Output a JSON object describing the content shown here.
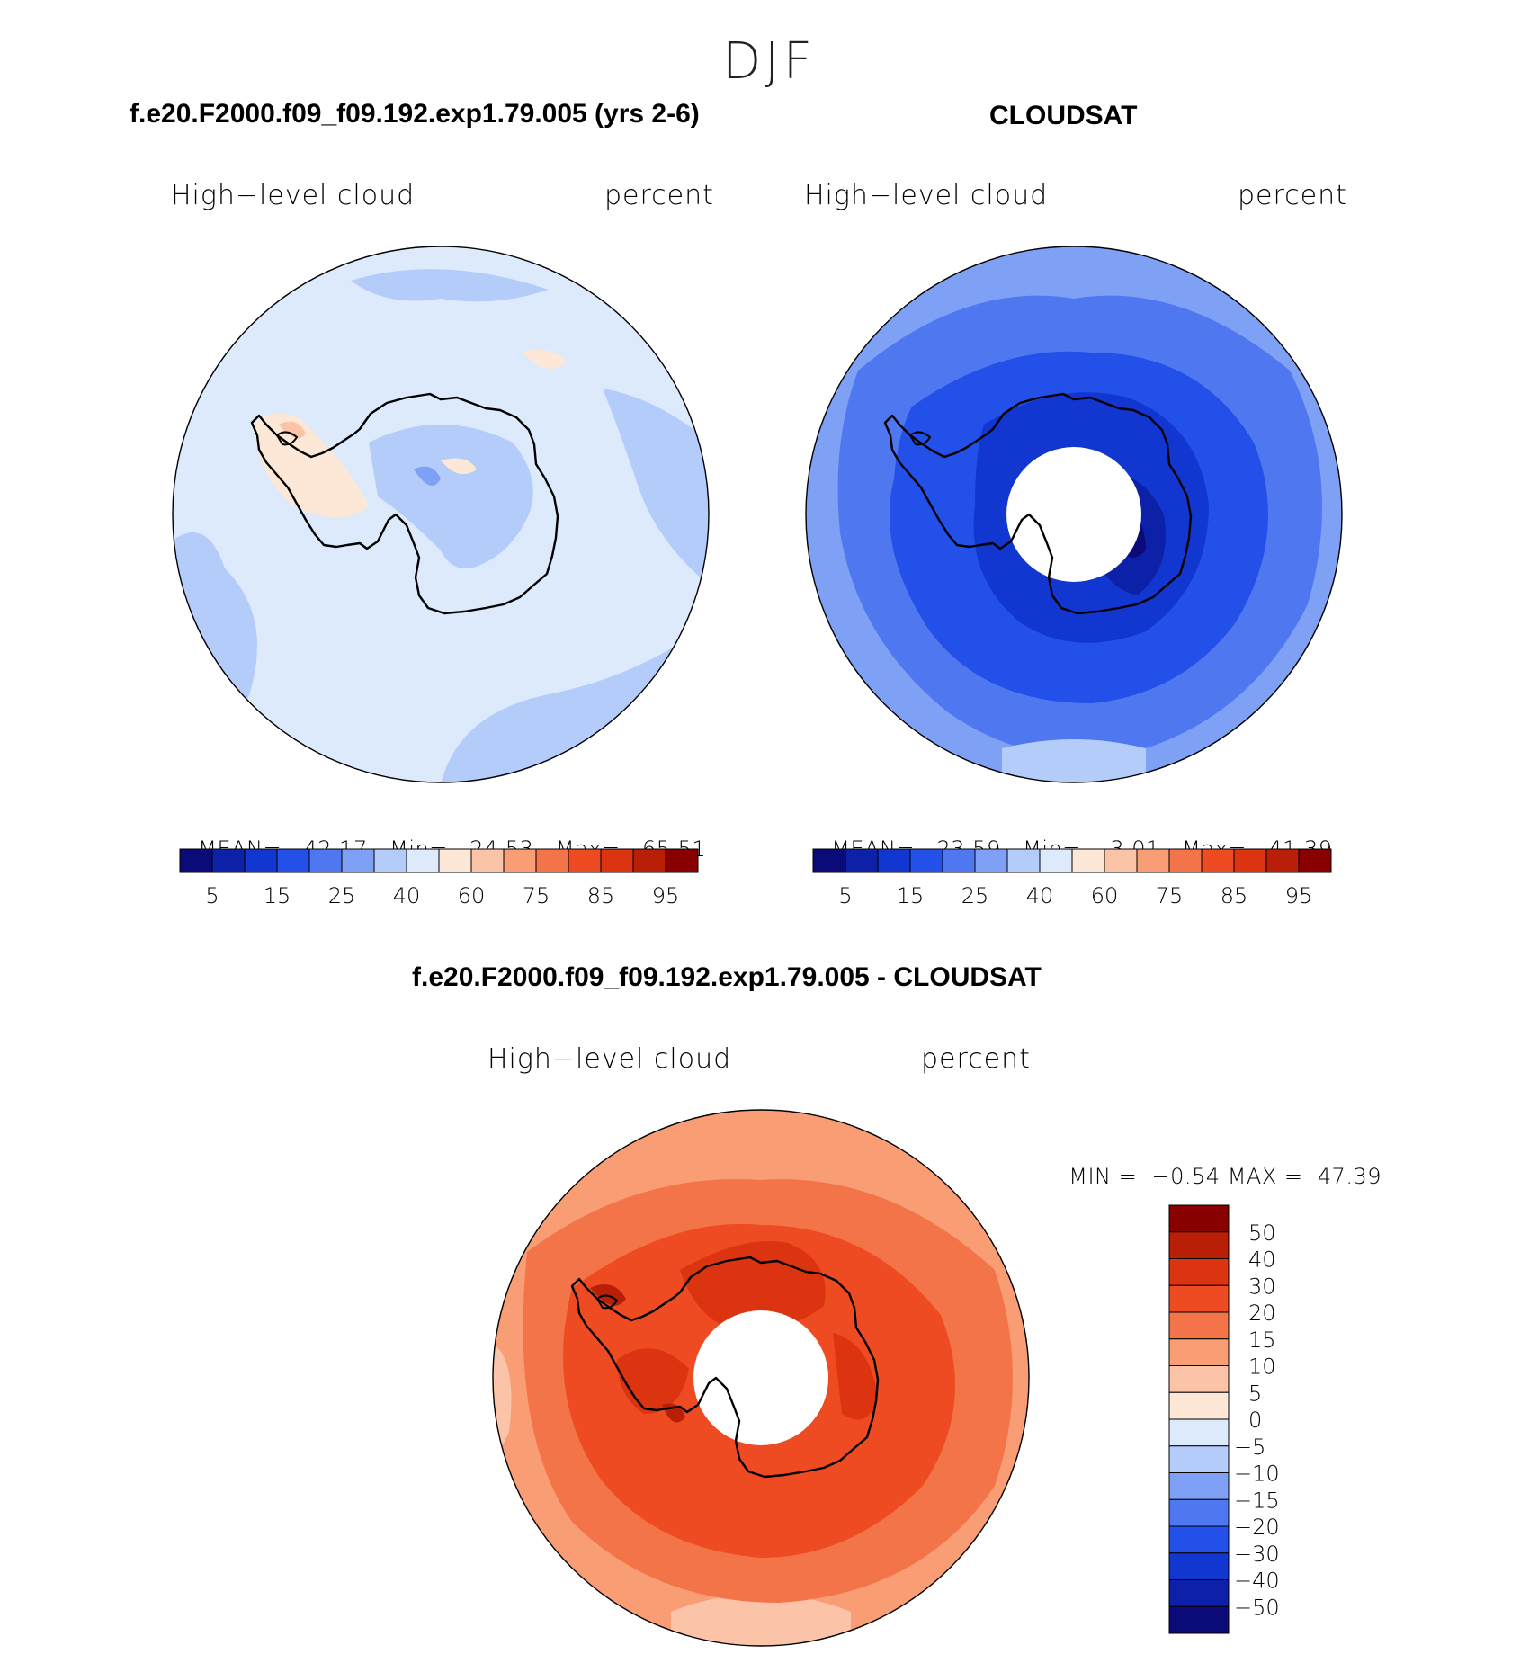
{
  "figure": {
    "season": "DJF"
  },
  "panels": [
    {
      "id": "model",
      "title": "f.e20.F2000.f09_f09.192.exp1.79.005 (yrs 2-6)",
      "variable": "High−level cloud",
      "units": "percent",
      "stats": {
        "mean_label": "MEAN=",
        "mean": "42.17",
        "min_label": "Min=",
        "min": "24.53",
        "max_label": "Max=",
        "max": "65.51"
      }
    },
    {
      "id": "obs",
      "title": "CLOUDSAT",
      "variable": "High−level cloud",
      "units": "percent",
      "stats": {
        "mean_label": "MEAN=",
        "mean": "23.59",
        "min_label": "Min=",
        "min": "3.01",
        "max_label": "Max=",
        "max": "41.39"
      }
    },
    {
      "id": "diff",
      "title": "f.e20.F2000.f09_f09.192.exp1.79.005 - CLOUDSAT",
      "variable": "High−level cloud",
      "units": "percent",
      "stats": {
        "min_label": "MIN =",
        "min": "−0.54",
        "max_label": "MAX =",
        "max": "47.39"
      }
    }
  ],
  "colorbars": {
    "abs": {
      "colors": [
        "#0a0a78",
        "#0c21a8",
        "#1236d0",
        "#2250e8",
        "#4f78f0",
        "#7ea1f6",
        "#b4ccfa",
        "#dceafb",
        "#fde7d6",
        "#fbc3a8",
        "#f99d75",
        "#f47449",
        "#ee4b22",
        "#dc3410",
        "#b81f06",
        "#880000"
      ],
      "tick_labels": [
        "5",
        "15",
        "25",
        "40",
        "60",
        "75",
        "85",
        "95"
      ]
    },
    "diff": {
      "colors": [
        "#880000",
        "#b81f06",
        "#dc3410",
        "#ee4b22",
        "#f47449",
        "#f99d75",
        "#fbc3a8",
        "#fde7d6",
        "#dceafb",
        "#b4ccfa",
        "#7ea1f6",
        "#4f78f0",
        "#2250e8",
        "#1236d0",
        "#0c21a8",
        "#0a0a78"
      ],
      "tick_labels": [
        "50",
        "40",
        "30",
        "20",
        "15",
        "10",
        "5",
        "0",
        "−5",
        "−10",
        "−15",
        "−20",
        "−30",
        "−40",
        "−50"
      ]
    }
  },
  "map": {
    "projection": "south-polar-stereographic",
    "region": "Antarctica",
    "coastline_color": "#000000",
    "missing_data_color": "#ffffff"
  },
  "chart_data": [
    {
      "type": "heatmap",
      "title": "f.e20.F2000.f09_f09.192.exp1.79.005 (yrs 2-6)",
      "field": "High−level cloud",
      "units": "percent",
      "mean": 42.17,
      "min": 24.53,
      "max": 65.51,
      "levels": [
        5,
        10,
        15,
        20,
        25,
        30,
        40,
        50,
        60,
        70,
        75,
        80,
        85,
        90,
        95
      ],
      "dominant_range": [
        40,
        60
      ],
      "colorbar_position": "bottom"
    },
    {
      "type": "heatmap",
      "title": "CLOUDSAT",
      "field": "High−level cloud",
      "units": "percent",
      "mean": 23.59,
      "min": 3.01,
      "max": 41.39,
      "levels": [
        5,
        10,
        15,
        20,
        25,
        30,
        40,
        50,
        60,
        70,
        75,
        80,
        85,
        90,
        95
      ],
      "dominant_range": [
        10,
        30
      ],
      "colorbar_position": "bottom"
    },
    {
      "type": "heatmap",
      "title": "f.e20.F2000.f09_f09.192.exp1.79.005 - CLOUDSAT",
      "field": "High−level cloud",
      "units": "percent",
      "min": -0.54,
      "max": 47.39,
      "levels": [
        -50,
        -40,
        -30,
        -20,
        -15,
        -10,
        -5,
        0,
        5,
        10,
        15,
        20,
        30,
        40,
        50
      ],
      "dominant_range": [
        10,
        30
      ],
      "colorbar_position": "right"
    }
  ]
}
